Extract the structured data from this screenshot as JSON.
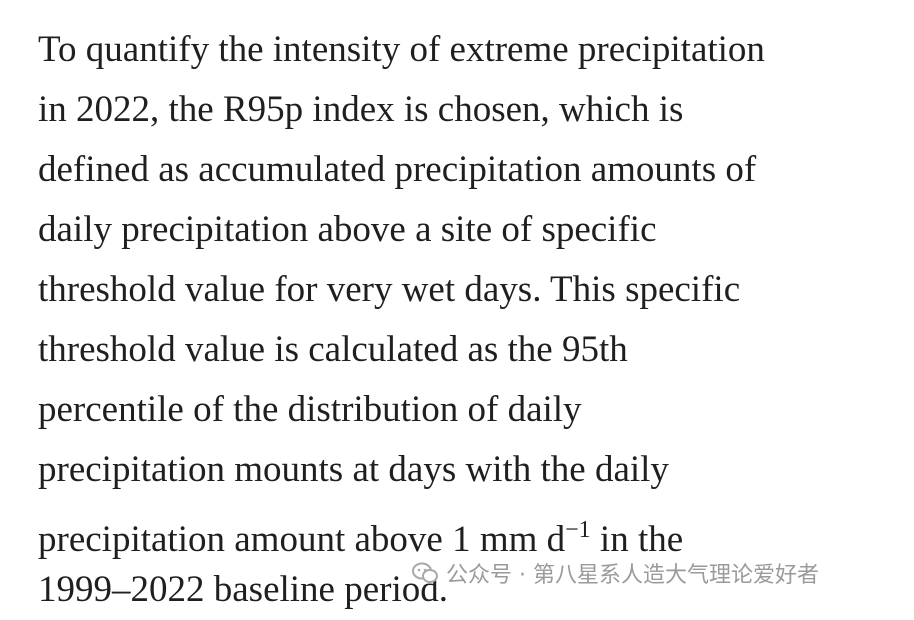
{
  "paragraph": {
    "lines": [
      [
        {
          "text": "To quantify the intensity of extreme precipitation"
        }
      ],
      [
        {
          "text": "in 2022, the R95p index is chosen, which is"
        }
      ],
      [
        {
          "text": "defined as accumulated precipitation amounts of"
        }
      ],
      [
        {
          "text": "daily precipitation above a site of specific"
        }
      ],
      [
        {
          "text": "threshold value for very wet days. This specific"
        }
      ],
      [
        {
          "text": "threshold value is calculated as the 95th"
        }
      ],
      [
        {
          "text": "percentile of the distribution of daily"
        }
      ],
      [
        {
          "text": "precipitation mounts at days with the daily"
        }
      ],
      [
        {
          "text": "precipitation amount above 1 mm d"
        },
        {
          "text": "−1",
          "sup": true
        },
        {
          "text": " in the"
        }
      ],
      [
        {
          "text": "1999–2022 baseline period."
        }
      ]
    ]
  },
  "watermark": {
    "text": "公众号 · 第八星系人造大气理论爱好者"
  }
}
